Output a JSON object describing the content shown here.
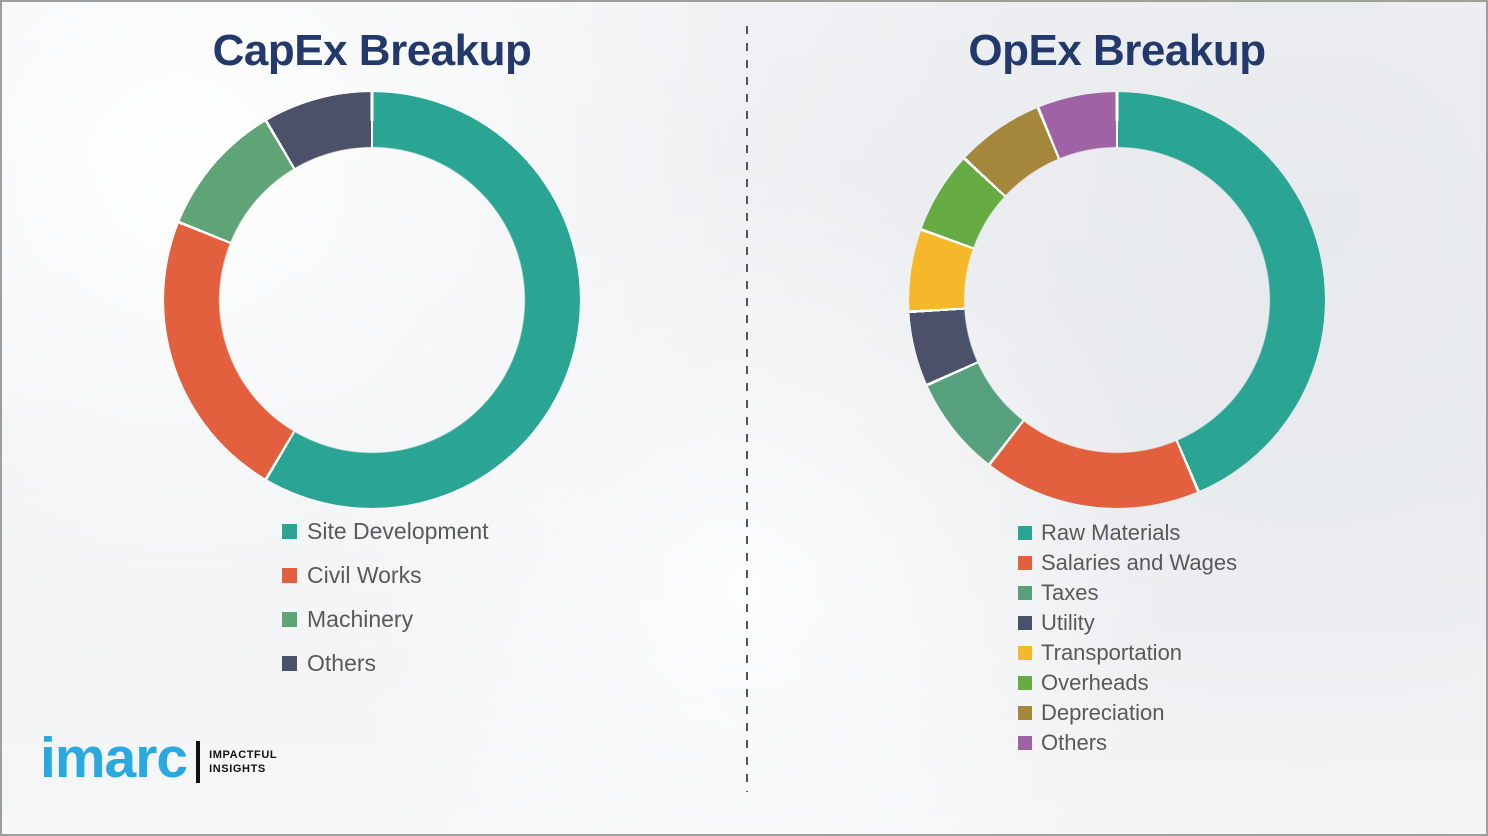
{
  "page": {
    "background_color": "#f0f1f3",
    "border_color": "#9e9e9e",
    "divider_color": "#555555"
  },
  "chart_data": [
    {
      "type": "pie",
      "variant": "donut",
      "title": "CapEx Breakup",
      "categories": [
        "Site Development",
        "Civil Works",
        "Machinery",
        "Others"
      ],
      "values": [
        58.5,
        22.6,
        10.4,
        8.5
      ],
      "values_unit": "percent, estimated from arc angles (no data labels shown)",
      "colors": [
        "#2ba593",
        "#e2603d",
        "#5ea476",
        "#4a5168"
      ],
      "start_angle_deg": 0,
      "direction": "clockwise",
      "legend_position": "below-left"
    },
    {
      "type": "pie",
      "variant": "donut",
      "title": "OpEx Breakup",
      "categories": [
        "Raw Materials",
        "Salaries and Wages",
        "Taxes",
        "Utility",
        "Transportation",
        "Overheads",
        "Depreciation",
        "Others"
      ],
      "values": [
        43.6,
        16.9,
        7.8,
        5.8,
        6.4,
        6.4,
        6.9,
        6.2
      ],
      "values_unit": "percent, estimated from arc angles (no data labels shown)",
      "colors": [
        "#2ba593",
        "#e2603d",
        "#56a07d",
        "#4a5168",
        "#f6b82b",
        "#65aa43",
        "#a5873c",
        "#9f63a5"
      ],
      "start_angle_deg": 0,
      "direction": "clockwise",
      "legend_position": "below-left"
    }
  ],
  "logo": {
    "brand": "imarc",
    "tagline_line1": "IMPACTFUL",
    "tagline_line2": "INSIGHTS",
    "brand_color": "#29a9e0",
    "tagline_color": "#111111"
  }
}
